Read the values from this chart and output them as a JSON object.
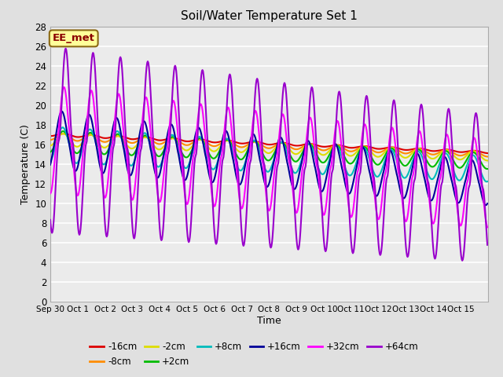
{
  "title": "Soil/Water Temperature Set 1",
  "xlabel": "Time",
  "ylabel": "Temperature (C)",
  "n_days": 16,
  "ylim": [
    0,
    28
  ],
  "yticks": [
    0,
    2,
    4,
    6,
    8,
    10,
    12,
    14,
    16,
    18,
    20,
    22,
    24,
    26,
    28
  ],
  "xtick_labels": [
    "Sep 30",
    "Oct 1",
    "Oct 2",
    "Oct 3",
    "Oct 4",
    "Oct 5",
    "Oct 6",
    "Oct 7",
    "Oct 8",
    "Oct 9",
    "Oct 10",
    "Oct 11",
    "Oct 12",
    "Oct 13",
    "Oct 14",
    "Oct 15"
  ],
  "annotation_text": "EE_met",
  "annotation_color": "#8B0000",
  "annotation_bg": "#FFFF99",
  "annotation_border": "#8B6914",
  "series": [
    {
      "label": "-16cm",
      "color": "#DD0000",
      "lw": 1.5
    },
    {
      "label": "-8cm",
      "color": "#FF8C00",
      "lw": 1.5
    },
    {
      "label": "-2cm",
      "color": "#DDDD00",
      "lw": 1.5
    },
    {
      "label": "+2cm",
      "color": "#00BB00",
      "lw": 1.5
    },
    {
      "label": "+8cm",
      "color": "#00BBBB",
      "lw": 1.5
    },
    {
      "label": "+16cm",
      "color": "#000099",
      "lw": 1.5
    },
    {
      "label": "+32cm",
      "color": "#FF00FF",
      "lw": 1.5
    },
    {
      "label": "+64cm",
      "color": "#9900CC",
      "lw": 1.5
    }
  ],
  "bg_color": "#E0E0E0",
  "plot_bg_color": "#EBEBEB",
  "grid_color": "#FFFFFF",
  "figsize": [
    6.4,
    4.8
  ],
  "dpi": 100
}
